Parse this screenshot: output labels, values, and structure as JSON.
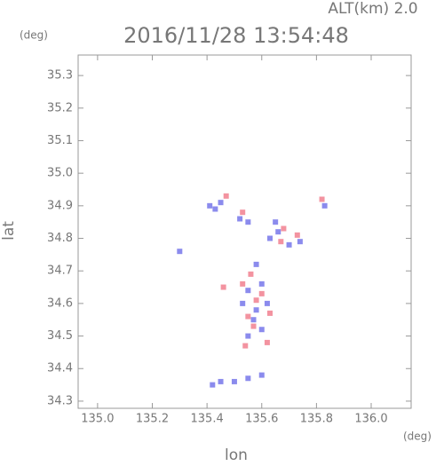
{
  "chart_data": {
    "type": "scatter",
    "title": "2016/11/28 13:54:48",
    "annotation": "ALT(km) 2.0",
    "y_unit": "(deg)",
    "x_unit": "(deg)",
    "xlabel": "lon",
    "ylabel": "lat",
    "xlim": [
      134.929,
      136.146
    ],
    "ylim": [
      34.278,
      35.363
    ],
    "xticks": [
      {
        "value": 135.0,
        "label": "135.0"
      },
      135.2,
      135.4,
      135.6,
      135.8,
      {
        "value": 136.0,
        "label": "136.0"
      }
    ],
    "yticks": [
      34.3,
      34.4,
      34.5,
      34.6,
      34.7,
      34.8,
      34.9,
      {
        "value": 35.0,
        "label": "35.0"
      },
      35.1,
      35.2,
      35.3
    ],
    "series": [
      {
        "color": "#6e6ee8",
        "x": [
          135.41,
          135.43,
          135.45,
          135.52,
          135.55,
          135.63,
          135.66,
          135.7,
          135.58,
          135.6,
          135.55,
          135.53,
          135.58,
          135.62,
          135.57,
          135.6,
          135.55,
          135.42,
          135.45,
          135.5,
          135.55,
          135.6,
          135.3,
          135.83,
          135.74,
          135.65
        ],
        "y": [
          34.9,
          34.89,
          34.91,
          34.86,
          34.85,
          34.8,
          34.82,
          34.78,
          34.72,
          34.66,
          34.64,
          34.6,
          34.58,
          34.6,
          34.55,
          34.52,
          34.5,
          34.35,
          34.36,
          34.36,
          34.37,
          34.38,
          34.76,
          34.9,
          34.79,
          34.85
        ]
      },
      {
        "color": "#f07888",
        "x": [
          135.47,
          135.53,
          135.67,
          135.68,
          135.56,
          135.53,
          135.6,
          135.58,
          135.63,
          135.55,
          135.57,
          135.62,
          135.54,
          135.82,
          135.73,
          135.46
        ],
        "y": [
          34.93,
          34.88,
          34.79,
          34.83,
          34.69,
          34.66,
          34.63,
          34.61,
          34.57,
          34.56,
          34.53,
          34.48,
          34.47,
          34.92,
          34.81,
          34.65
        ]
      }
    ]
  }
}
